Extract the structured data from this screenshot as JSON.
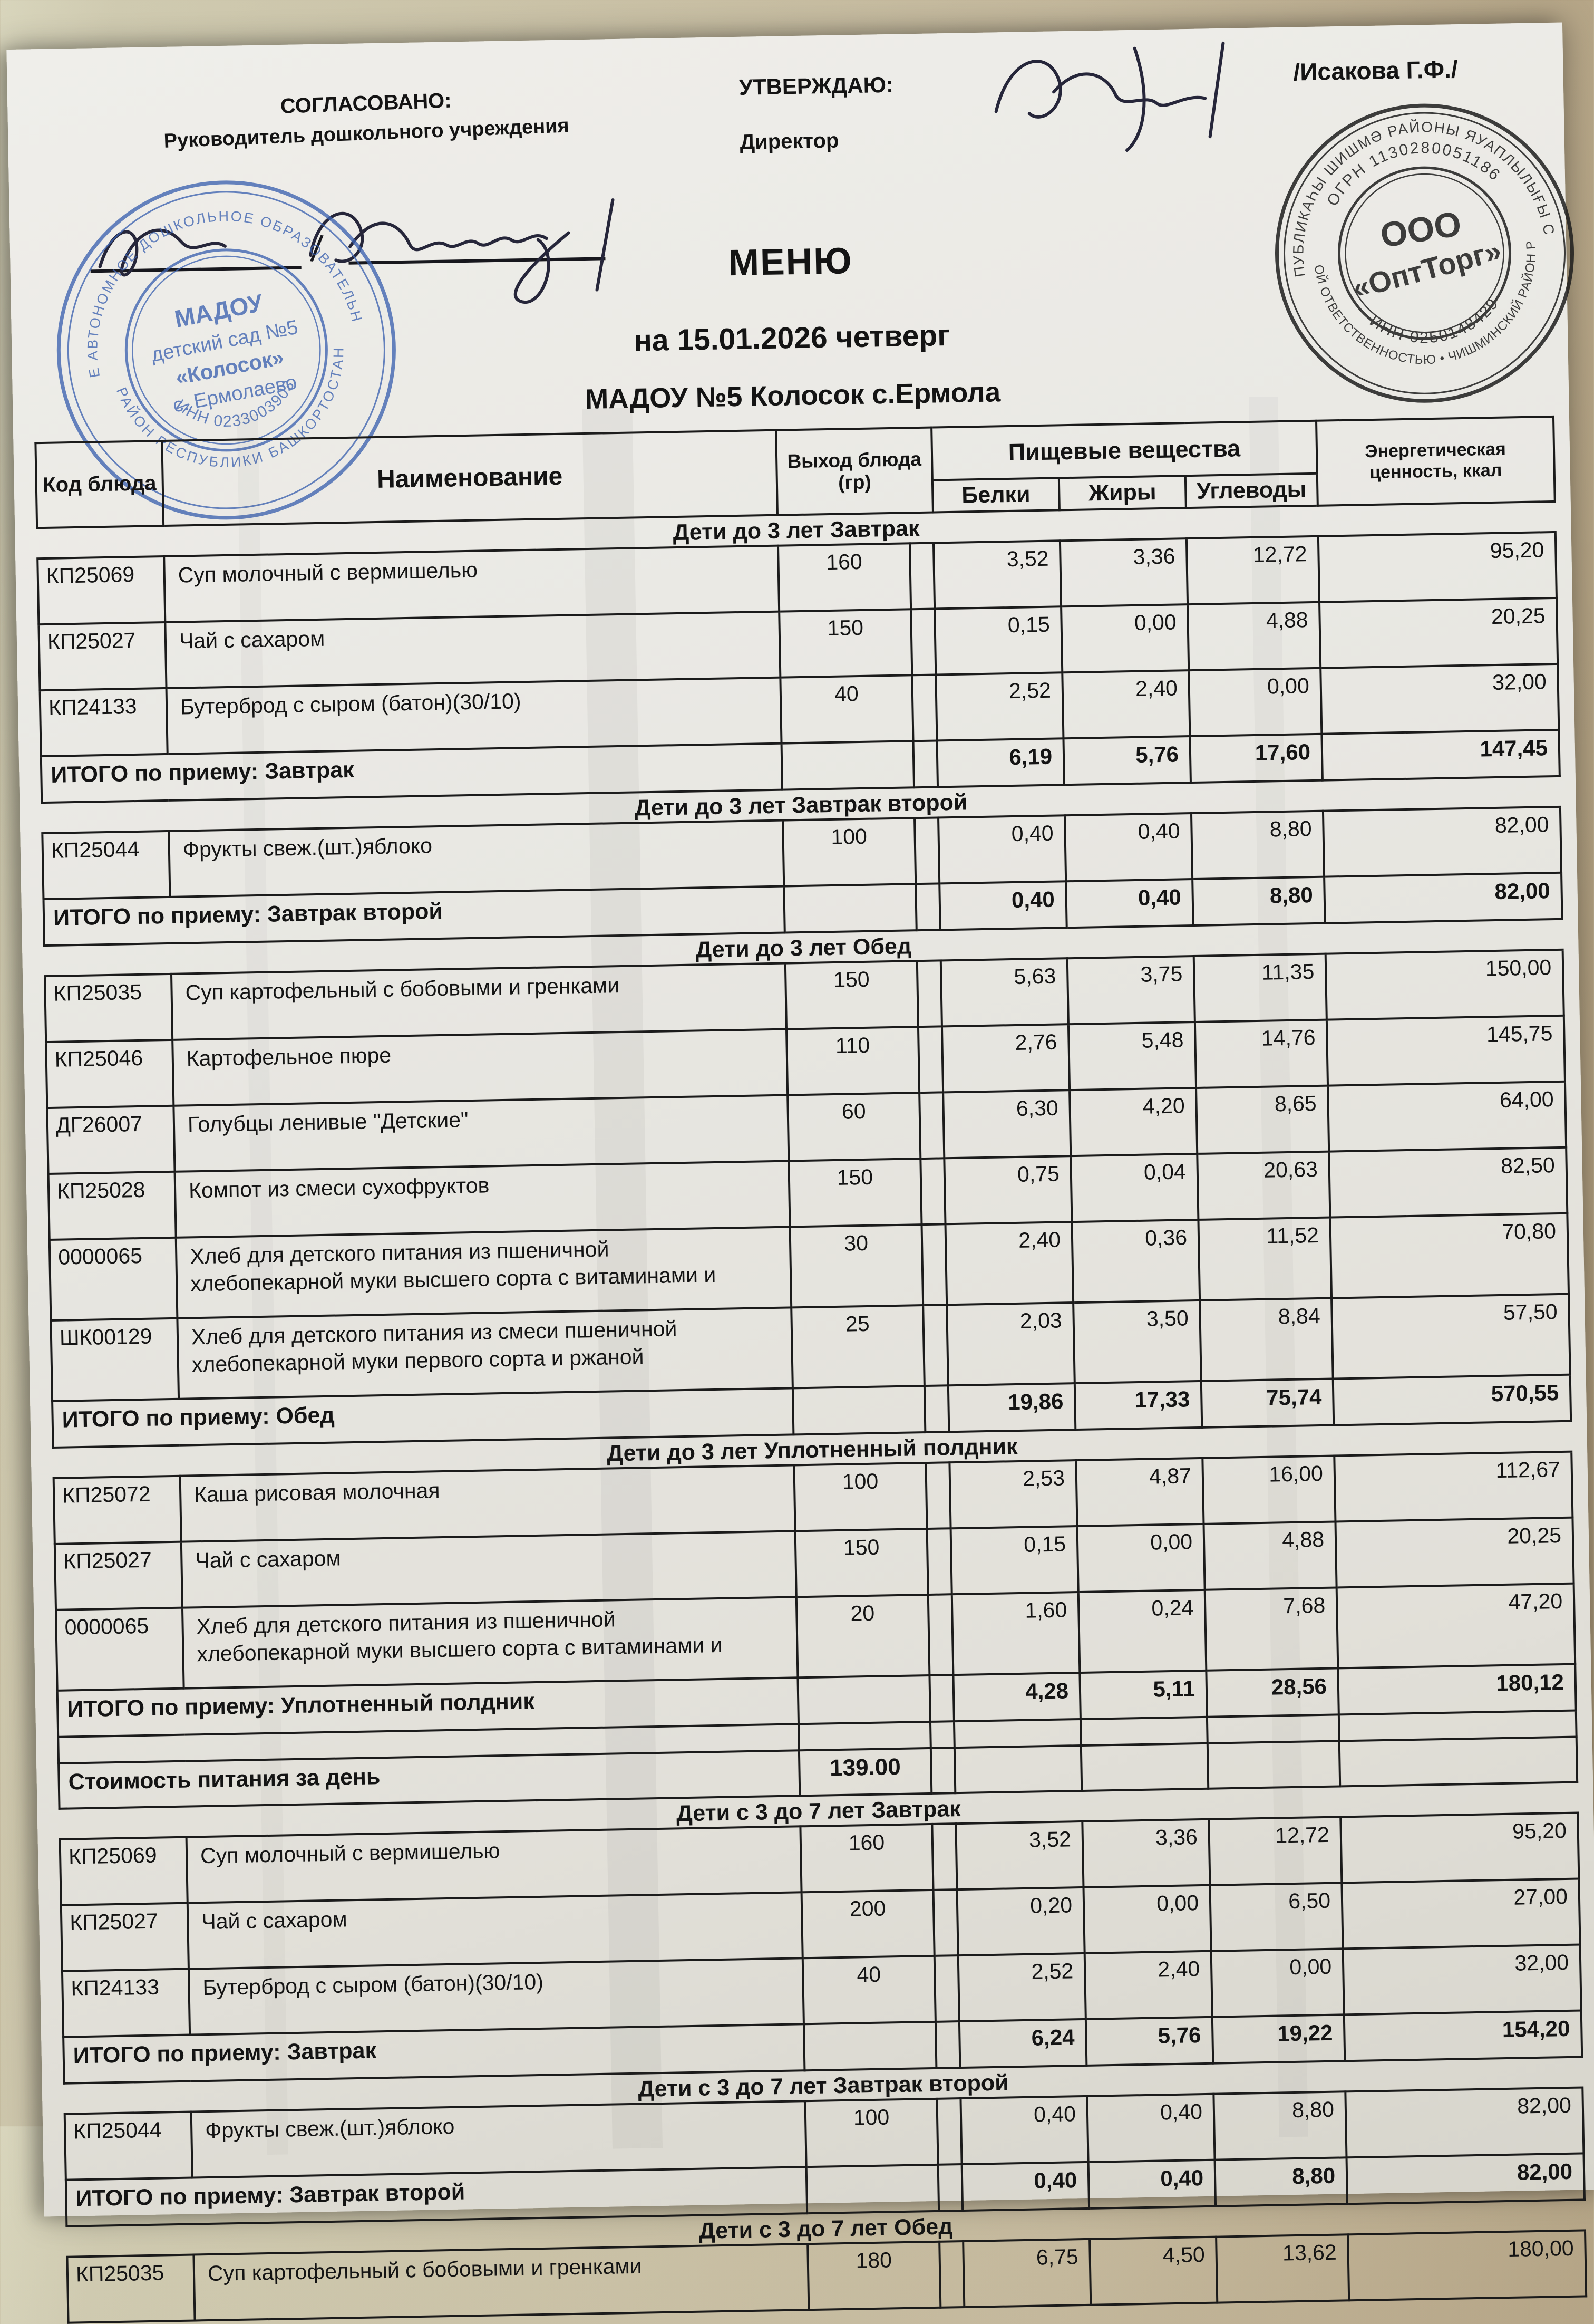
{
  "approval_left": {
    "line1": "СОГЛАСОВАНО:",
    "line2": "Руководитель дошкольного учреждения",
    "separator": "/"
  },
  "approval_right": {
    "line1": "УТВЕРЖДАЮ:",
    "line2": "Директор",
    "name": "/Исакова Г.Ф./"
  },
  "title": {
    "main": "МЕНЮ",
    "date_line": "на 15.01.2026  четверг",
    "org_line": "МАДОУ №5 Колосок с.Ермола"
  },
  "stamps": {
    "blue": {
      "color": "#3d63b0",
      "ring_top": "МУНИЦИПАЛЬНОЕ АВТОНОМНОЕ ДОШКОЛЬНОЕ ОБРАЗОВАТЕЛЬНОЕ УЧРЕЖДЕНИЕ",
      "ring_bottom": "РАЙОН РЕСПУБЛИКИ БАШКОРТОСТАН",
      "center1": "МАДОУ",
      "center2": "детский сад №5",
      "center3": "«Колосок»",
      "center4": "с. Ермолаево",
      "inn": "ИНН 0233003903"
    },
    "black": {
      "color": "#1e1e1e",
      "ring_top_outer": "БАШКОРТОСТАН РЕСПУБЛИКАҺЫ ШИШМӘ РАЙОНЫ ЯУАПЛЫЛЫҒЫ СИКЛӘНГӘН ЙӘМҒИӘТ",
      "ring_bottom_outer": "ОБЩЕСТВО С ОГРАНИЧЕННОЙ ОТВЕТСТВЕННОСТЬЮ • ЧИШМИНСКИЙ РАЙОН РЕСПУБЛИКИ БАШКОРТОСТАН",
      "ogrn": "ОГРН 1130280051186",
      "inn": "ИНН 0250148429",
      "center1": "ООО",
      "center2": "«ОптТорг»"
    }
  },
  "table_headers": {
    "code": "Код блюда",
    "name": "Наименование",
    "output": "Выход блюда (гр)",
    "nutrients": "Пищевые вещества",
    "protein": "Белки",
    "fat": "Жиры",
    "carbs": "Углеводы",
    "energy": "Энергетическая ценность, ккал"
  },
  "menu_blocks": [
    {
      "type": "section",
      "title": "Дети до 3 лет Завтрак",
      "rows": [
        {
          "code": "КП25069",
          "name": "Суп молочный с вермишелью",
          "out": "160",
          "p": "3,52",
          "f": "3,36",
          "c": "12,72",
          "k": "95,20"
        },
        {
          "code": "КП25027",
          "name": "Чай с сахаром",
          "out": "150",
          "p": "0,15",
          "f": "0,00",
          "c": "4,88",
          "k": "20,25"
        },
        {
          "code": "КП24133",
          "name": "Бутерброд с сыром (батон)(30/10)",
          "out": "40",
          "p": "2,52",
          "f": "2,40",
          "c": "0,00",
          "k": "32,00"
        }
      ],
      "total": {
        "label": "ИТОГО по приему: Завтрак",
        "p": "6,19",
        "f": "5,76",
        "c": "17,60",
        "k": "147,45"
      }
    },
    {
      "type": "section",
      "title": "Дети до 3 лет Завтрак второй",
      "rows": [
        {
          "code": "КП25044",
          "name": "Фрукты свеж.(шт.)яблоко",
          "out": "100",
          "p": "0,40",
          "f": "0,40",
          "c": "8,80",
          "k": "82,00"
        }
      ],
      "total": {
        "label": "ИТОГО по приему: Завтрак второй",
        "p": "0,40",
        "f": "0,40",
        "c": "8,80",
        "k": "82,00"
      }
    },
    {
      "type": "section",
      "title": "Дети до 3 лет Обед",
      "rows": [
        {
          "code": "КП25035",
          "name": "Суп картофельный с бобовыми и гренками",
          "out": "150",
          "p": "5,63",
          "f": "3,75",
          "c": "11,35",
          "k": "150,00"
        },
        {
          "code": "КП25046",
          "name": "Картофельное пюре",
          "out": "110",
          "p": "2,76",
          "f": "5,48",
          "c": "14,76",
          "k": "145,75"
        },
        {
          "code": "ДГ26007",
          "name": "Голубцы ленивые \"Детские\"",
          "out": "60",
          "p": "6,30",
          "f": "4,20",
          "c": "8,65",
          "k": "64,00"
        },
        {
          "code": "КП25028",
          "name": "Компот из смеси сухофруктов",
          "out": "150",
          "p": "0,75",
          "f": "0,04",
          "c": "20,63",
          "k": "82,50"
        },
        {
          "code": "0000065",
          "name": "Хлеб для детского питания из пшеничной",
          "name2": "хлебопекарной муки высшего сорта с витаминами и",
          "out": "30",
          "p": "2,40",
          "f": "0,36",
          "c": "11,52",
          "k": "70,80"
        },
        {
          "code": "ШК00129",
          "name": "Хлеб для детского питания из смеси пшеничной",
          "name2": "хлебопекарной муки первого сорта и ржаной",
          "out": "25",
          "p": "2,03",
          "f": "3,50",
          "c": "8,84",
          "k": "57,50"
        }
      ],
      "total": {
        "label": "ИТОГО по приему: Обед",
        "p": "19,86",
        "f": "17,33",
        "c": "75,74",
        "k": "570,55"
      }
    },
    {
      "type": "section",
      "title": "Дети до 3 лет Уплотненный полдник",
      "rows": [
        {
          "code": "КП25072",
          "name": "Каша рисовая молочная",
          "out": "100",
          "p": "2,53",
          "f": "4,87",
          "c": "16,00",
          "k": "112,67"
        },
        {
          "code": "КП25027",
          "name": "Чай с сахаром",
          "out": "150",
          "p": "0,15",
          "f": "0,00",
          "c": "4,88",
          "k": "20,25"
        },
        {
          "code": "0000065",
          "name": "Хлеб для детского питания из пшеничной",
          "name2": "хлебопекарной муки высшего сорта с витаминами и",
          "out": "20",
          "p": "1,60",
          "f": "0,24",
          "c": "7,68",
          "k": "47,20"
        }
      ],
      "total": {
        "label": "ИТОГО по приему: Уплотненный полдник",
        "p": "4,28",
        "f": "5,11",
        "c": "28,56",
        "k": "180,12"
      }
    },
    {
      "type": "gap"
    },
    {
      "type": "cost",
      "label": "Стоимость питания за день",
      "value": "139.00"
    },
    {
      "type": "section",
      "title": "Дети с 3 до 7 лет Завтрак",
      "rows": [
        {
          "code": "КП25069",
          "name": "Суп молочный с вермишелью",
          "out": "160",
          "p": "3,52",
          "f": "3,36",
          "c": "12,72",
          "k": "95,20"
        },
        {
          "code": "КП25027",
          "name": "Чай с сахаром",
          "out": "200",
          "p": "0,20",
          "f": "0,00",
          "c": "6,50",
          "k": "27,00"
        },
        {
          "code": "КП24133",
          "name": "Бутерброд с сыром (батон)(30/10)",
          "out": "40",
          "p": "2,52",
          "f": "2,40",
          "c": "0,00",
          "k": "32,00"
        }
      ],
      "total": {
        "label": "ИТОГО по приему: Завтрак",
        "p": "6,24",
        "f": "5,76",
        "c": "19,22",
        "k": "154,20"
      }
    },
    {
      "type": "section",
      "title": "Дети с 3 до 7 лет Завтрак второй",
      "rows": [
        {
          "code": "КП25044",
          "name": "Фрукты свеж.(шт.)яблоко",
          "out": "100",
          "p": "0,40",
          "f": "0,40",
          "c": "8,80",
          "k": "82,00"
        }
      ],
      "total": {
        "label": "ИТОГО по приему: Завтрак второй",
        "p": "0,40",
        "f": "0,40",
        "c": "8,80",
        "k": "82,00"
      }
    },
    {
      "type": "section",
      "title": "Дети с 3 до 7 лет Обед",
      "rows": [
        {
          "code": "КП25035",
          "name": "Суп картофельный с бобовыми и гренками",
          "out": "180",
          "p": "6,75",
          "f": "4,50",
          "c": "13,62",
          "k": "180,00"
        }
      ]
    }
  ]
}
